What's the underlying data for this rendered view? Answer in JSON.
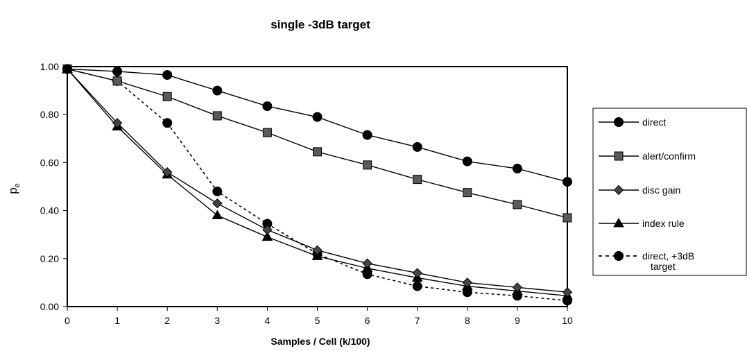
{
  "chart_data": {
    "type": "line",
    "title": "single -3dB target",
    "xlabel": "Samples / Cell  (k/100)",
    "ylabel": "p",
    "ylabel_subscript": "e",
    "x": [
      0,
      1,
      2,
      3,
      4,
      5,
      6,
      7,
      8,
      9,
      10
    ],
    "xlim": [
      0,
      10
    ],
    "ylim": [
      0,
      1
    ],
    "y_ticks": [
      "0.00",
      "0.20",
      "0.40",
      "0.60",
      "0.80",
      "1.00"
    ],
    "x_ticks": [
      "0",
      "1",
      "2",
      "3",
      "4",
      "5",
      "6",
      "7",
      "8",
      "9",
      "10"
    ],
    "grid": false,
    "legend_position": "right",
    "series": [
      {
        "name": "direct",
        "marker": "circle",
        "dash": "solid",
        "values": [
          0.99,
          0.98,
          0.965,
          0.9,
          0.835,
          0.79,
          0.715,
          0.665,
          0.605,
          0.575,
          0.52
        ]
      },
      {
        "name": "alert/confirm",
        "marker": "square",
        "dash": "solid",
        "values": [
          0.99,
          0.94,
          0.875,
          0.795,
          0.725,
          0.645,
          0.59,
          0.53,
          0.475,
          0.425,
          0.37
        ]
      },
      {
        "name": "disc gain",
        "marker": "diamond",
        "dash": "solid",
        "values": [
          0.99,
          0.765,
          0.56,
          0.43,
          0.32,
          0.235,
          0.18,
          0.14,
          0.1,
          0.08,
          0.06
        ]
      },
      {
        "name": "index rule",
        "marker": "triangle",
        "dash": "solid",
        "values": [
          0.99,
          0.75,
          0.55,
          0.38,
          0.29,
          0.21,
          0.16,
          0.12,
          0.085,
          0.065,
          0.045
        ]
      },
      {
        "name": "direct, +3dB target",
        "marker": "circle",
        "dash": "dashed",
        "values": [
          0.99,
          0.94,
          0.765,
          0.48,
          0.345,
          0.22,
          0.135,
          0.085,
          0.06,
          0.045,
          0.025
        ]
      }
    ]
  }
}
